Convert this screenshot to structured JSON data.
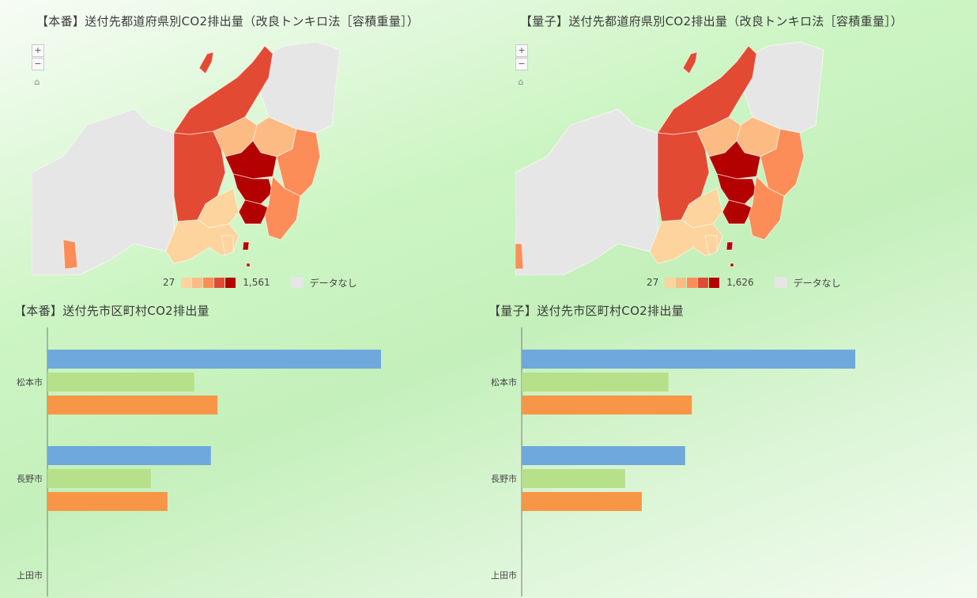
{
  "colors": {
    "scale": [
      "#fdd49e",
      "#fdbb84",
      "#fc8d59",
      "#e34a33",
      "#b30000"
    ],
    "nodata": "#e6e6e6",
    "bars": [
      "#6fa8dc",
      "#b6e08a",
      "#f79646"
    ]
  },
  "maps": [
    {
      "title": "【本番】送付先都道府県別CO2排出量（改良トンキロ法［容積重量］）",
      "zoom_in": "+",
      "zoom_out": "−",
      "home_icon": "home-icon",
      "legend_min": "27",
      "legend_max": "1,561",
      "legend_nodata": "データなし"
    },
    {
      "title": "【量子】送付先都道府県別CO2排出量（改良トンキロ法［容積重量］）",
      "zoom_in": "+",
      "zoom_out": "−",
      "home_icon": "home-icon",
      "legend_min": "27",
      "legend_max": "1,626",
      "legend_nodata": "データなし"
    }
  ],
  "chart_data": [
    {
      "type": "bar",
      "orientation": "horizontal",
      "title": "【本番】送付先市区町村CO2排出量",
      "categories": [
        "松本市",
        "長野市",
        "上田市"
      ],
      "series": [
        {
          "values": [
            100,
            49,
            0
          ]
        },
        {
          "values": [
            44,
            31,
            0
          ]
        },
        {
          "values": [
            51,
            36,
            0
          ]
        }
      ],
      "xlim": [
        0,
        100
      ],
      "grid": false
    },
    {
      "type": "bar",
      "orientation": "horizontal",
      "title": "【量子】送付先市区町村CO2排出量",
      "categories": [
        "松本市",
        "長野市",
        "上田市"
      ],
      "series": [
        {
          "values": [
            100,
            49,
            0
          ]
        },
        {
          "values": [
            44,
            31,
            0
          ]
        },
        {
          "values": [
            51,
            36,
            0
          ]
        }
      ],
      "xlim": [
        0,
        100
      ],
      "grid": false
    }
  ]
}
